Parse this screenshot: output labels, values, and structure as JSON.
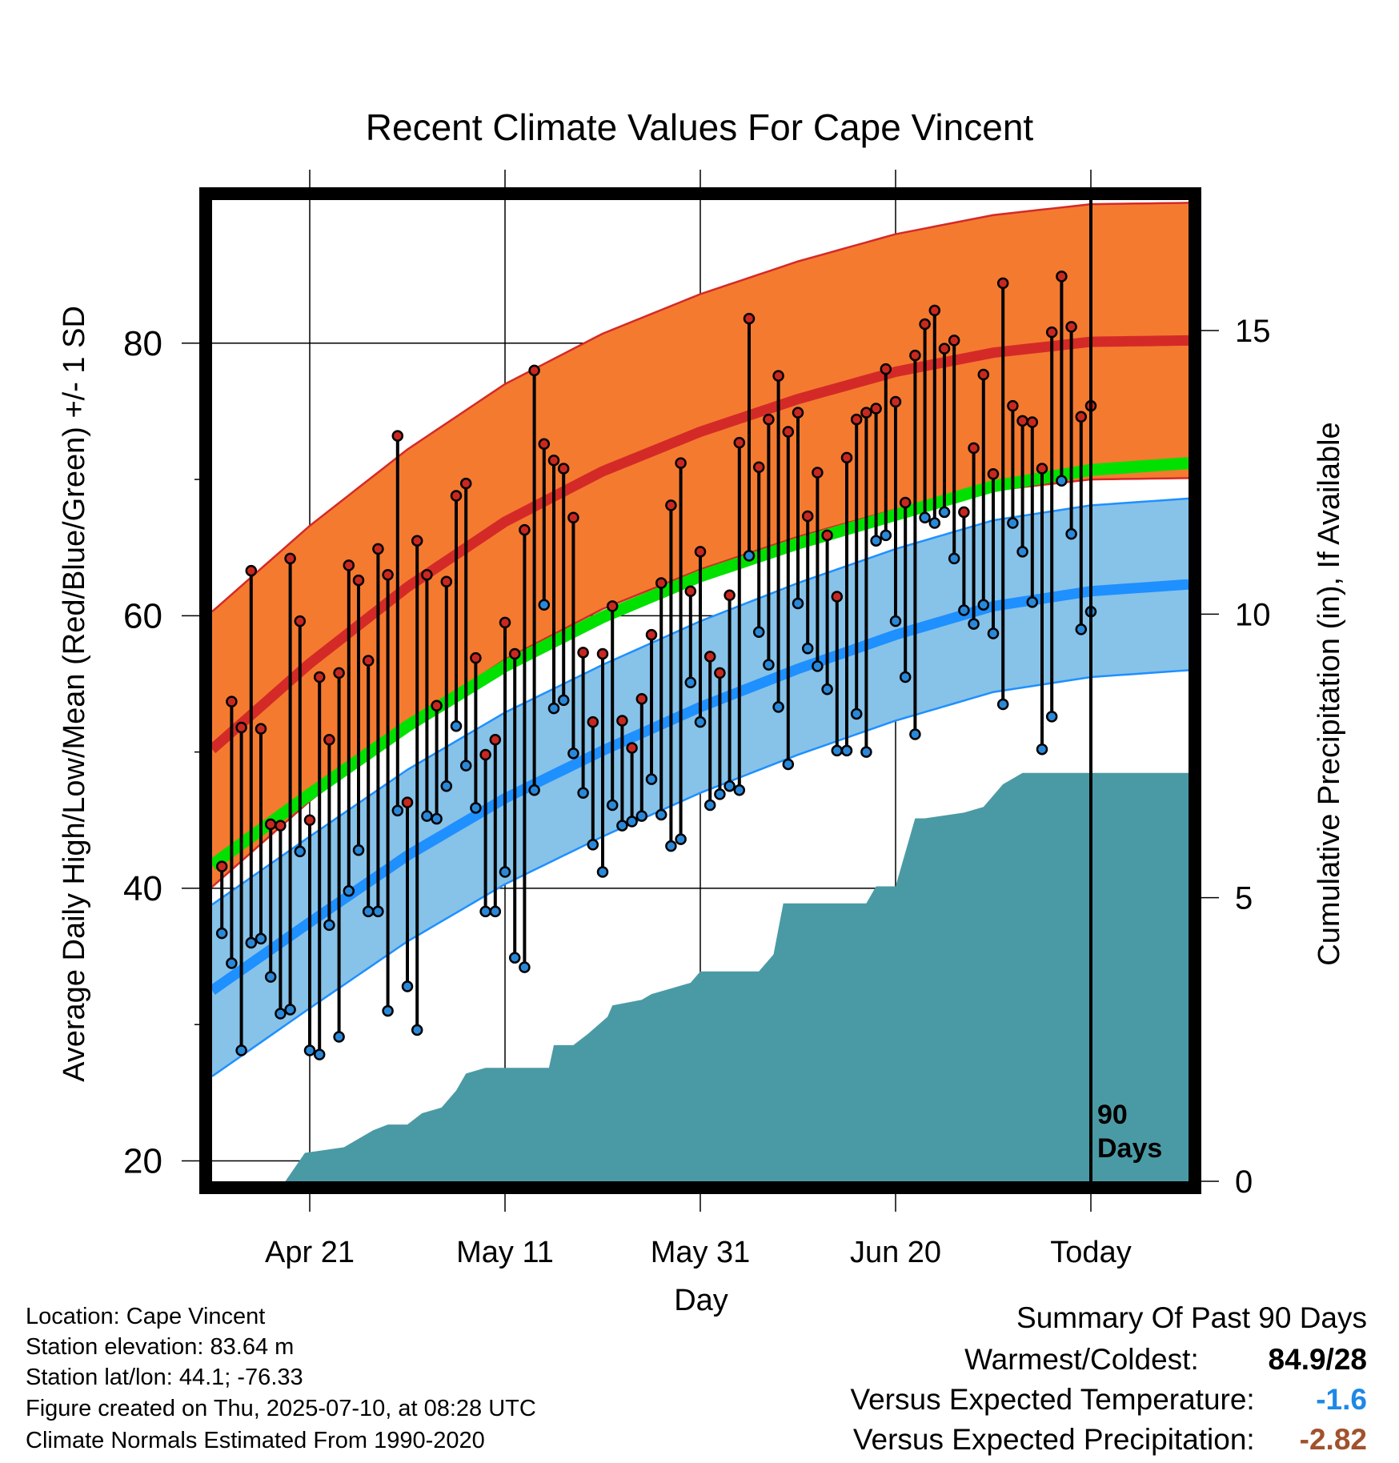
{
  "chart_data": {
    "type": "line",
    "title": "Recent Climate Values For Cape Vincent",
    "xlabel": "Day",
    "ylabel_left": "Average Daily High/Low/Mean (Red/Blue/Green) +/- 1 SD",
    "ylabel_right": "Cumulative Precipitation (in), If Available",
    "x_ticks": [
      {
        "day": 10,
        "label": "Apr 21"
      },
      {
        "day": 30,
        "label": "May 11"
      },
      {
        "day": 50,
        "label": "May 31"
      },
      {
        "day": 70,
        "label": "Jun 20"
      },
      {
        "day": 90,
        "label": "Today"
      }
    ],
    "xlim": [
      0,
      100
    ],
    "today_day": 90,
    "today_label": [
      "90",
      "Days"
    ],
    "ylim_left": [
      18.5,
      90.5
    ],
    "y_ticks_left": [
      20,
      40,
      60,
      80
    ],
    "y_minor_ticks_left": [
      30,
      50,
      70
    ],
    "ylim_right": [
      0,
      17.3
    ],
    "y_ticks_right": [
      0,
      5,
      10,
      15
    ],
    "grid": true,
    "normals": {
      "days": [
        0,
        10,
        20,
        30,
        40,
        50,
        60,
        70,
        80,
        90,
        100
      ],
      "high_mean": [
        50.2,
        56.5,
        62.1,
        66.9,
        70.6,
        73.5,
        75.9,
        77.9,
        79.3,
        80.1,
        80.2
      ],
      "high_sd": 10.1,
      "low_mean": [
        32.5,
        37.5,
        42.4,
        46.6,
        50.1,
        53.3,
        56.1,
        58.6,
        60.7,
        61.8,
        62.3
      ],
      "low_sd": 6.3,
      "mean": [
        41.7,
        46.9,
        51.9,
        56.3,
        59.9,
        62.9,
        65.3,
        67.4,
        69.5,
        70.7,
        71.2
      ]
    },
    "observed": {
      "highs": [
        41.6,
        53.7,
        51.8,
        63.3,
        51.7,
        44.7,
        44.6,
        64.2,
        59.6,
        45.0,
        55.5,
        50.9,
        55.8,
        63.7,
        62.6,
        56.7,
        64.9,
        63.0,
        73.2,
        46.3,
        65.5,
        63.0,
        53.4,
        62.5,
        68.8,
        69.7,
        56.9,
        49.8,
        50.9,
        59.5,
        57.2,
        66.3,
        78.0,
        72.6,
        71.4,
        70.8,
        67.2,
        57.3,
        52.2,
        57.2,
        60.7,
        52.3,
        50.3,
        53.9,
        58.6,
        62.4,
        68.1,
        71.2,
        61.8,
        64.7,
        57.0,
        55.8,
        61.5,
        72.7,
        81.8,
        70.9,
        74.4,
        77.6,
        73.5,
        74.9,
        67.3,
        70.5,
        65.9,
        61.4,
        71.6,
        74.4,
        74.9,
        75.2,
        78.1,
        75.7,
        68.3,
        79.1,
        81.4,
        82.4,
        79.6,
        80.2,
        67.6,
        72.3,
        77.7,
        70.4,
        84.4,
        75.4,
        74.3,
        74.2,
        70.8,
        80.8,
        84.9,
        81.2,
        74.6,
        75.4
      ],
      "lows": [
        36.7,
        34.5,
        28.1,
        36.0,
        36.3,
        33.5,
        30.8,
        31.1,
        42.7,
        28.1,
        27.8,
        37.3,
        29.1,
        39.8,
        42.8,
        38.3,
        38.3,
        31.0,
        45.7,
        32.8,
        29.6,
        45.3,
        45.1,
        47.5,
        51.9,
        49.0,
        45.9,
        38.3,
        38.3,
        41.2,
        34.9,
        34.2,
        47.2,
        60.8,
        53.2,
        53.8,
        49.9,
        47.0,
        43.2,
        41.2,
        46.1,
        44.6,
        44.9,
        45.3,
        48.0,
        45.4,
        43.1,
        43.6,
        55.1,
        52.2,
        46.1,
        46.9,
        47.5,
        47.2,
        64.4,
        58.8,
        56.4,
        53.3,
        49.1,
        60.9,
        57.6,
        56.3,
        54.6,
        50.1,
        50.1,
        52.8,
        50.0,
        65.5,
        65.9,
        59.6,
        55.5,
        51.3,
        67.2,
        66.8,
        67.6,
        64.2,
        60.4,
        59.4,
        60.8,
        58.7,
        53.5,
        66.8,
        64.7,
        61.0,
        50.2,
        52.6,
        69.9,
        66.0,
        59.0,
        60.3
      ]
    },
    "precip": {
      "days": [
        0,
        7.5,
        9.5,
        13.5,
        16.5,
        18,
        20,
        21.5,
        23.5,
        25,
        26,
        28,
        34.5,
        35,
        37,
        38.5,
        40.5,
        41,
        44,
        45,
        49,
        50,
        52,
        56,
        57.5,
        58.5,
        61,
        63,
        67,
        68,
        70,
        72,
        73,
        77,
        79,
        81,
        83,
        86,
        100
      ],
      "values": [
        0,
        0,
        0.5,
        0.6,
        0.9,
        1.0,
        1.0,
        1.2,
        1.3,
        1.6,
        1.9,
        2.0,
        2.0,
        2.4,
        2.4,
        2.6,
        2.9,
        3.1,
        3.2,
        3.3,
        3.5,
        3.7,
        3.7,
        3.7,
        4.0,
        4.9,
        4.9,
        4.9,
        4.9,
        5.2,
        5.2,
        6.4,
        6.4,
        6.5,
        6.6,
        7.0,
        7.2,
        7.2,
        7.2
      ]
    }
  },
  "footer": {
    "location": "Location: Cape Vincent",
    "elevation": "Station elevation: 83.64 m",
    "latlon": "Station lat/lon: 44.1; -76.33",
    "created": "Figure created on Thu, 2025-07-10, at 08:28 UTC",
    "normals_note": "Climate Normals Estimated From 1990-2020"
  },
  "summary": {
    "heading": "Summary Of Past 90 Days",
    "warmest_coldest_label": "Warmest/Coldest:",
    "warmest_coldest_value": "84.9/28",
    "temp_label": "Versus Expected Temperature:",
    "temp_value": "-1.6",
    "temp_color": "#1e88e5",
    "precip_label": "Versus Expected Precipitation:",
    "precip_value": "-2.82",
    "precip_color": "#a0522d"
  },
  "colors": {
    "high_band": "#f47a30",
    "high_line": "#d42a27",
    "low_band": "#87c2e8",
    "low_line": "#1e90ff",
    "mean_line": "#00e100",
    "precip_fill": "#4a9aa5",
    "high_dot": "#c82820",
    "low_dot": "#2a88d8"
  }
}
